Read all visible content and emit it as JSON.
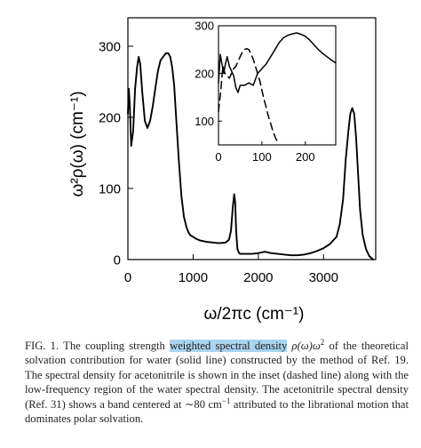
{
  "chart_data": [
    {
      "type": "line",
      "ylabel": "ω²ρ(ω) (cm⁻¹)",
      "xlabel": "ω/2πc (cm⁻¹)",
      "xlim": [
        0,
        3800
      ],
      "ylim": [
        0,
        340
      ],
      "xticks": [
        0,
        1000,
        2000,
        3000
      ],
      "yticks": [
        0,
        100,
        200,
        300
      ],
      "xtick_labels": [
        "0",
        "1000",
        "2000",
        "3000"
      ],
      "ytick_labels": [
        "0",
        "100",
        "200",
        "300"
      ],
      "series": [
        {
          "style": "solid",
          "x": [
            0,
            15,
            30,
            50,
            80,
            110,
            140,
            165,
            190,
            220,
            260,
            300,
            340,
            380,
            420,
            460,
            500,
            540,
            580,
            620,
            650,
            680,
            710,
            740,
            780,
            820,
            860,
            900,
            930,
            960,
            1000,
            1050,
            1100,
            1150,
            1200,
            1300,
            1400,
            1500,
            1550,
            1580,
            1610,
            1630,
            1645,
            1660,
            1680,
            1700,
            1720,
            1750,
            1800,
            1900,
            2000,
            2100,
            2200,
            2300,
            2400,
            2500,
            2600,
            2700,
            2800,
            2900,
            3000,
            3100,
            3200,
            3250,
            3300,
            3340,
            3380,
            3410,
            3440,
            3470,
            3500,
            3530,
            3560,
            3600,
            3650,
            3700,
            3760
          ],
          "y": [
            205,
            240,
            215,
            160,
            180,
            240,
            270,
            285,
            275,
            235,
            195,
            185,
            195,
            215,
            240,
            265,
            280,
            285,
            290,
            290,
            285,
            270,
            245,
            200,
            140,
            90,
            60,
            45,
            38,
            34,
            32,
            29,
            27,
            26,
            25,
            24,
            23,
            24,
            28,
            40,
            75,
            92,
            80,
            40,
            15,
            10,
            8,
            8,
            8,
            8,
            9,
            11,
            9,
            8,
            7,
            6,
            6,
            7,
            9,
            12,
            16,
            22,
            32,
            50,
            85,
            140,
            180,
            205,
            213,
            205,
            170,
            120,
            70,
            35,
            15,
            5,
            0
          ]
        }
      ]
    },
    {
      "type": "line",
      "xlim": [
        0,
        270
      ],
      "ylim": [
        50,
        300
      ],
      "xticks": [
        0,
        100,
        200
      ],
      "yticks": [
        100,
        200,
        300
      ],
      "xtick_labels": [
        "0",
        "100",
        "200"
      ],
      "ytick_labels": [
        "100",
        "200",
        "300"
      ],
      "series": [
        {
          "style": "solid",
          "x": [
            0,
            4,
            8,
            12,
            16,
            20,
            25,
            30,
            35,
            40,
            45,
            50,
            60,
            70,
            80,
            90,
            100,
            110,
            120,
            130,
            140,
            150,
            160,
            170,
            180,
            190,
            200,
            210,
            220,
            230,
            240,
            250,
            260,
            270
          ],
          "y": [
            180,
            240,
            220,
            200,
            220,
            235,
            215,
            205,
            195,
            170,
            160,
            175,
            175,
            180,
            175,
            200,
            210,
            220,
            235,
            250,
            265,
            275,
            280,
            283,
            285,
            282,
            278,
            270,
            260,
            250,
            242,
            235,
            228,
            222
          ]
        },
        {
          "style": "dashed",
          "x": [
            0,
            5,
            10,
            15,
            20,
            25,
            30,
            35,
            40,
            45,
            50,
            55,
            60,
            65,
            70,
            75,
            80,
            85,
            90,
            95,
            100,
            105,
            110,
            115,
            120,
            125,
            130,
            135,
            140
          ],
          "y": [
            120,
            160,
            215,
            200,
            195,
            190,
            200,
            210,
            215,
            225,
            235,
            245,
            250,
            252,
            250,
            240,
            230,
            215,
            200,
            185,
            165,
            145,
            128,
            110,
            95,
            80,
            67,
            58,
            52
          ]
        }
      ]
    }
  ],
  "caption": {
    "prefix": "FIG. 1. The coupling strength ",
    "highlight": "weighted spectral density",
    "math": " ρ(ω)ω",
    "math_sup": "2",
    "rest": " of the theoretical solvation contribution for water (solid line) constructed by the method of Ref. 19. The spectral density for acetonitrile is shown in the inset (dashed line) along with the low-frequency region of the water spectral density. The acetonitrile spectral density (Ref. 31) shows a band centered at ∼80 cm",
    "rest_sup": "−1",
    "tail": " attributed to the librational motion that dominates polar solvation."
  }
}
